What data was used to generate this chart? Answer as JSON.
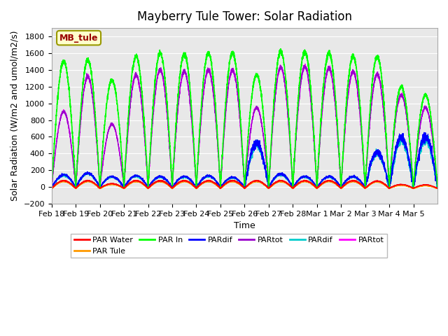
{
  "title": "Mayberry Tule Tower: Solar Radiation",
  "xlabel": "Time",
  "ylabel": "Solar Radiation (W/m2 and umol/m2/s)",
  "ylim": [
    -200,
    1900
  ],
  "yticks": [
    -200,
    0,
    200,
    400,
    600,
    800,
    1000,
    1200,
    1400,
    1600,
    1800
  ],
  "bg_color": "#e8e8e8",
  "fig_color": "#ffffff",
  "legend_label": "MB_tule",
  "legend_box_color": "#ffffcc",
  "legend_box_edge": "#999900",
  "legend_text_color": "#990000",
  "series": [
    {
      "label": "PAR Water",
      "color": "#ff0000"
    },
    {
      "label": "PAR Tule",
      "color": "#ff9900"
    },
    {
      "label": "PAR In",
      "color": "#00ff00"
    },
    {
      "label": "PARdif",
      "color": "#0000ff"
    },
    {
      "label": "PARtot",
      "color": "#9900cc"
    },
    {
      "label": "PARdif",
      "color": "#00cccc"
    },
    {
      "label": "PARtot",
      "color": "#ff00ff"
    }
  ],
  "x_labels": [
    "Feb 18",
    "Feb 19",
    "Feb 20",
    "Feb 21",
    "Feb 22",
    "Feb 23",
    "Feb 24",
    "Feb 25",
    "Feb 26",
    "Feb 27",
    "Feb 28",
    "Mar 1",
    "Mar 2",
    "Mar 3",
    "Mar 4",
    "Mar 5"
  ],
  "num_days": 16,
  "points_per_day": 288,
  "par_in_peaks": [
    1500,
    1520,
    1280,
    1560,
    1600,
    1590,
    1600,
    1600,
    1340,
    1620,
    1620,
    1600,
    1560,
    1560,
    1200,
    1100
  ],
  "par_water_peaks": [
    90,
    90,
    55,
    90,
    90,
    90,
    90,
    90,
    90,
    90,
    90,
    90,
    90,
    85,
    45,
    40
  ],
  "par_tule_peaks": [
    85,
    85,
    50,
    85,
    85,
    85,
    85,
    85,
    85,
    85,
    85,
    85,
    85,
    80,
    40,
    35
  ],
  "par_dif_peaks": [
    150,
    170,
    130,
    140,
    130,
    130,
    140,
    120,
    530,
    160,
    130,
    130,
    130,
    420,
    600,
    600
  ],
  "par_tot_peaks": [
    900,
    1320,
    750,
    1340,
    1400,
    1380,
    1400,
    1400,
    950,
    1430,
    1440,
    1420,
    1380,
    1350,
    1100,
    950
  ],
  "title_fontsize": 12,
  "axis_fontsize": 9,
  "tick_fontsize": 8
}
